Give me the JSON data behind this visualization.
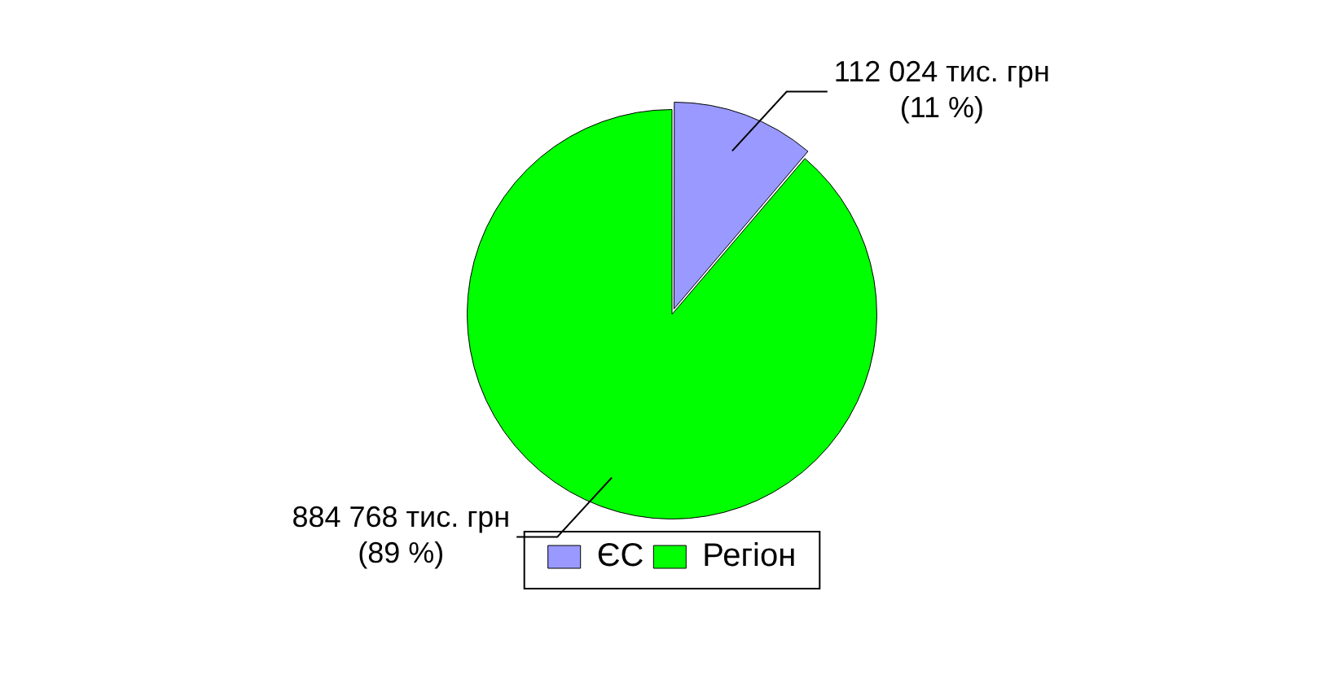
{
  "chart_data": {
    "type": "pie",
    "categories": [
      "ЄС",
      "Регіон"
    ],
    "values": [
      112024,
      884768
    ],
    "colors": [
      "#9999ff",
      "#00ff00"
    ],
    "value_labels": [
      "112 024 тис. грн\n(11 %)",
      "884 768 тис. грн\n(89 %)"
    ],
    "legend": "bottom"
  }
}
